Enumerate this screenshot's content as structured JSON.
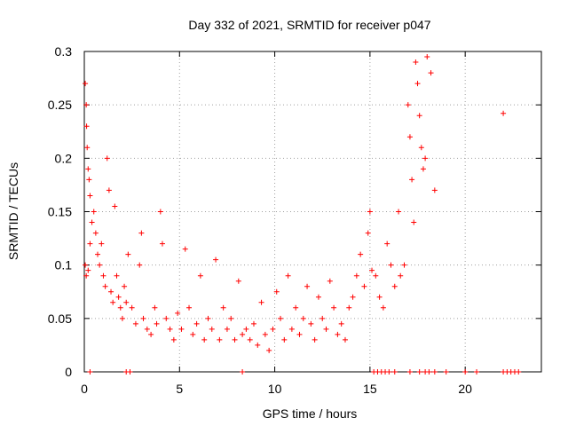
{
  "chart_data": {
    "type": "scatter",
    "title": "Day 332 of 2021, SRMTID for receiver p047",
    "xlabel": "GPS time / hours",
    "ylabel": "SRMTID / TECUs",
    "xlim": [
      0,
      24
    ],
    "ylim": [
      0,
      0.3
    ],
    "x_ticks": [
      0,
      5,
      10,
      15,
      20
    ],
    "x_tick_labels": [
      "0",
      "5",
      "10",
      "15",
      "20"
    ],
    "y_ticks": [
      0,
      0.05,
      0.1,
      0.15,
      0.2,
      0.25,
      0.3
    ],
    "y_tick_labels": [
      "0",
      "0.05",
      "0.1",
      "0.15",
      "0.2",
      "0.25",
      "0.3"
    ],
    "grid": true,
    "marker": "plus",
    "color": "#ff0000",
    "series": [
      {
        "name": "SRMTID",
        "points": [
          [
            0.05,
            0.27
          ],
          [
            0.1,
            0.25
          ],
          [
            0.12,
            0.23
          ],
          [
            0.15,
            0.21
          ],
          [
            0.2,
            0.19
          ],
          [
            0.25,
            0.18
          ],
          [
            0.3,
            0.165
          ],
          [
            0.05,
            0.1
          ],
          [
            0.1,
            0.09
          ],
          [
            0.2,
            0.095
          ],
          [
            0.3,
            0.12
          ],
          [
            0.4,
            0.14
          ],
          [
            0.5,
            0.15
          ],
          [
            0.6,
            0.13
          ],
          [
            0.7,
            0.11
          ],
          [
            0.8,
            0.1
          ],
          [
            0.9,
            0.12
          ],
          [
            1.0,
            0.09
          ],
          [
            1.1,
            0.08
          ],
          [
            1.2,
            0.2
          ],
          [
            1.3,
            0.17
          ],
          [
            1.4,
            0.075
          ],
          [
            1.5,
            0.065
          ],
          [
            1.6,
            0.155
          ],
          [
            1.7,
            0.09
          ],
          [
            1.8,
            0.07
          ],
          [
            1.9,
            0.06
          ],
          [
            2.0,
            0.05
          ],
          [
            2.1,
            0.08
          ],
          [
            2.2,
            0.065
          ],
          [
            2.3,
            0.11
          ],
          [
            2.5,
            0.06
          ],
          [
            2.7,
            0.045
          ],
          [
            2.9,
            0.1
          ],
          [
            3.0,
            0.13
          ],
          [
            3.1,
            0.05
          ],
          [
            3.3,
            0.04
          ],
          [
            3.5,
            0.035
          ],
          [
            3.7,
            0.06
          ],
          [
            3.8,
            0.045
          ],
          [
            4.0,
            0.15
          ],
          [
            4.1,
            0.12
          ],
          [
            4.3,
            0.05
          ],
          [
            4.5,
            0.04
          ],
          [
            4.7,
            0.03
          ],
          [
            4.9,
            0.055
          ],
          [
            5.1,
            0.04
          ],
          [
            5.3,
            0.115
          ],
          [
            5.5,
            0.06
          ],
          [
            5.7,
            0.035
          ],
          [
            5.9,
            0.045
          ],
          [
            6.1,
            0.09
          ],
          [
            6.3,
            0.03
          ],
          [
            6.5,
            0.05
          ],
          [
            6.7,
            0.04
          ],
          [
            6.9,
            0.105
          ],
          [
            7.1,
            0.03
          ],
          [
            7.3,
            0.06
          ],
          [
            7.5,
            0.04
          ],
          [
            7.7,
            0.05
          ],
          [
            7.9,
            0.03
          ],
          [
            8.1,
            0.085
          ],
          [
            8.3,
            0.035
          ],
          [
            8.5,
            0.04
          ],
          [
            8.7,
            0.03
          ],
          [
            8.9,
            0.045
          ],
          [
            9.1,
            0.025
          ],
          [
            9.3,
            0.065
          ],
          [
            9.5,
            0.035
          ],
          [
            9.7,
            0.02
          ],
          [
            9.9,
            0.04
          ],
          [
            10.1,
            0.075
          ],
          [
            10.3,
            0.05
          ],
          [
            10.5,
            0.03
          ],
          [
            10.7,
            0.09
          ],
          [
            10.9,
            0.04
          ],
          [
            11.1,
            0.06
          ],
          [
            11.3,
            0.035
          ],
          [
            11.5,
            0.05
          ],
          [
            11.7,
            0.08
          ],
          [
            11.9,
            0.045
          ],
          [
            12.1,
            0.03
          ],
          [
            12.3,
            0.07
          ],
          [
            12.5,
            0.05
          ],
          [
            12.7,
            0.04
          ],
          [
            12.9,
            0.085
          ],
          [
            13.1,
            0.06
          ],
          [
            13.3,
            0.035
          ],
          [
            13.5,
            0.045
          ],
          [
            13.7,
            0.03
          ],
          [
            13.9,
            0.06
          ],
          [
            14.1,
            0.07
          ],
          [
            14.3,
            0.09
          ],
          [
            14.5,
            0.11
          ],
          [
            14.7,
            0.08
          ],
          [
            14.9,
            0.13
          ],
          [
            15.0,
            0.15
          ],
          [
            15.1,
            0.095
          ],
          [
            15.3,
            0.09
          ],
          [
            15.5,
            0.07
          ],
          [
            15.7,
            0.06
          ],
          [
            15.9,
            0.12
          ],
          [
            16.1,
            0.1
          ],
          [
            16.3,
            0.08
          ],
          [
            16.5,
            0.15
          ],
          [
            16.6,
            0.09
          ],
          [
            16.8,
            0.1
          ],
          [
            17.0,
            0.25
          ],
          [
            17.1,
            0.22
          ],
          [
            17.2,
            0.18
          ],
          [
            17.3,
            0.14
          ],
          [
            17.4,
            0.29
          ],
          [
            17.5,
            0.27
          ],
          [
            17.6,
            0.24
          ],
          [
            17.7,
            0.21
          ],
          [
            17.8,
            0.19
          ],
          [
            17.9,
            0.2
          ],
          [
            18.0,
            0.295
          ],
          [
            18.2,
            0.28
          ],
          [
            18.4,
            0.17
          ],
          [
            22.0,
            0.242
          ],
          [
            0.3,
            0.0
          ],
          [
            2.2,
            0.0
          ],
          [
            2.4,
            0.0
          ],
          [
            8.3,
            0.0
          ],
          [
            15.2,
            0.0
          ],
          [
            15.4,
            0.0
          ],
          [
            15.6,
            0.0
          ],
          [
            15.8,
            0.0
          ],
          [
            16.0,
            0.0
          ],
          [
            16.3,
            0.0
          ],
          [
            17.1,
            0.0
          ],
          [
            17.6,
            0.0
          ],
          [
            17.9,
            0.0
          ],
          [
            18.1,
            0.0
          ],
          [
            18.4,
            0.0
          ],
          [
            19.0,
            0.0
          ],
          [
            20.0,
            0.0
          ],
          [
            20.6,
            0.0
          ],
          [
            22.0,
            0.0
          ],
          [
            22.2,
            0.0
          ],
          [
            22.4,
            0.0
          ],
          [
            22.6,
            0.0
          ],
          [
            22.8,
            0.0
          ]
        ]
      }
    ]
  }
}
